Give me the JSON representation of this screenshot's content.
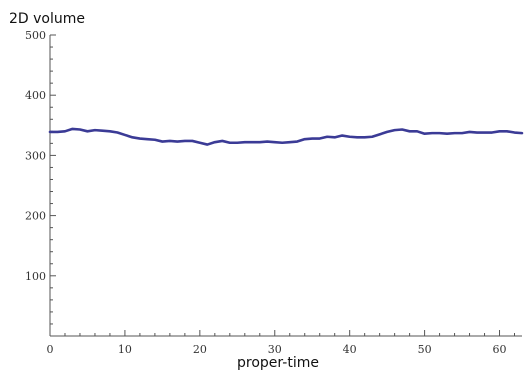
{
  "chart_data": {
    "type": "line",
    "title": "",
    "xlabel": "proper-time",
    "ylabel": "2D volume",
    "xlim": [
      0,
      63
    ],
    "ylim": [
      0,
      500
    ],
    "x_ticks": [
      0,
      10,
      20,
      30,
      40,
      50,
      60
    ],
    "y_ticks": [
      100,
      200,
      300,
      400,
      500
    ],
    "color": "#3b3b96",
    "series": [
      {
        "x": [
          0,
          1,
          2,
          3,
          4,
          5,
          6,
          7,
          8,
          9,
          10,
          11,
          12,
          13,
          14,
          15,
          16,
          17,
          18,
          19,
          20,
          21,
          22,
          23,
          24,
          25,
          26,
          27,
          28,
          29,
          30,
          31,
          32,
          33,
          34,
          35,
          36,
          37,
          38,
          39,
          40,
          41,
          42,
          43,
          44,
          45,
          46,
          47,
          48,
          49,
          50,
          51,
          52,
          53,
          54,
          55,
          56,
          57,
          58,
          59,
          60,
          61,
          62,
          63
        ],
        "values": [
          339,
          339,
          340,
          344,
          343,
          340,
          342,
          341,
          340,
          338,
          334,
          330,
          328,
          327,
          326,
          323,
          324,
          323,
          324,
          324,
          321,
          318,
          322,
          324,
          321,
          321,
          322,
          322,
          322,
          323,
          322,
          321,
          322,
          323,
          327,
          328,
          328,
          331,
          330,
          333,
          331,
          330,
          330,
          331,
          335,
          339,
          342,
          343,
          340,
          340,
          336,
          337,
          337,
          336,
          337,
          337,
          339,
          338,
          338,
          338,
          340,
          340,
          338,
          337
        ]
      }
    ]
  }
}
